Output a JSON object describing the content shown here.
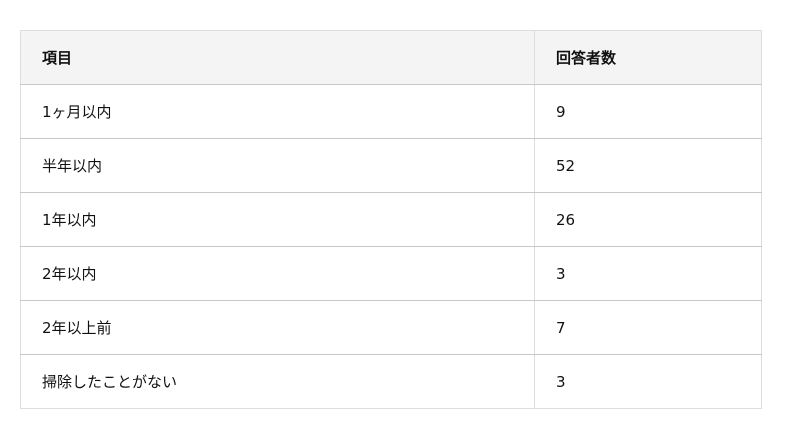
{
  "table": {
    "headers": [
      "項目",
      "回答者数"
    ],
    "rows": [
      [
        "1ヶ月以内",
        "9"
      ],
      [
        "半年以内",
        "52"
      ],
      [
        "1年以内",
        "26"
      ],
      [
        "2年以内",
        "3"
      ],
      [
        "2年以上前",
        "7"
      ],
      [
        "掃除したことがない",
        "3"
      ]
    ]
  }
}
